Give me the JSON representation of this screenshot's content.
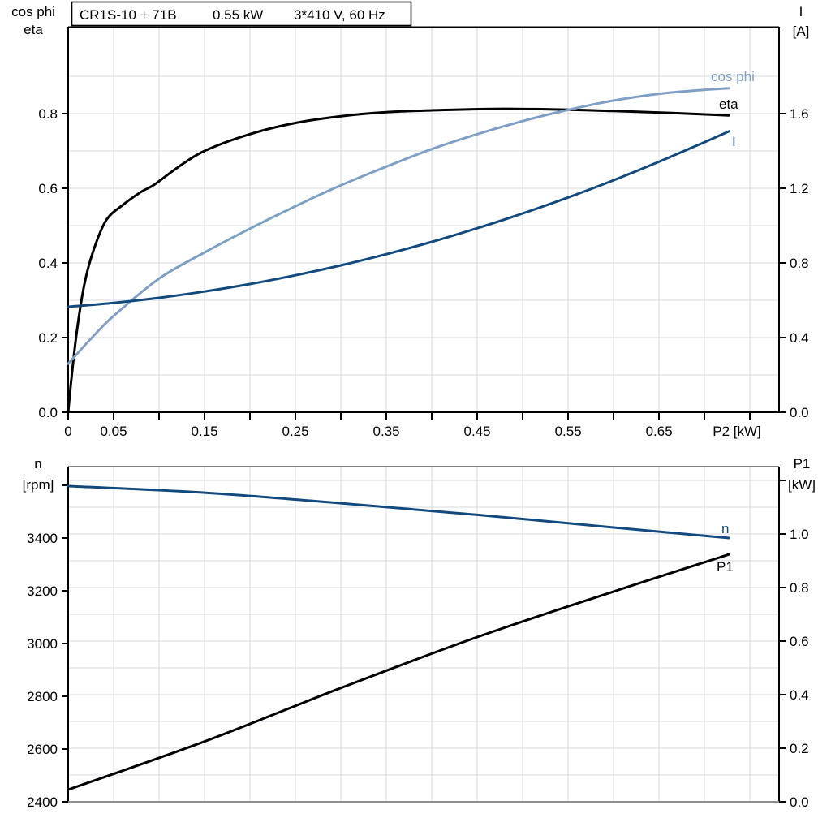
{
  "title": {
    "parts": [
      "CR1S-10 + 71B",
      "0.55 kW",
      "3*410 V, 60 Hz"
    ]
  },
  "colors": {
    "black": "#000000",
    "navy": "#124A7D",
    "light_blue": "#7FA0C4",
    "grid": "#D7D9DB",
    "frame_gray": "#8C8F91",
    "background": "#FFFFFF"
  },
  "chart_data": [
    {
      "type": "line",
      "panel": "top",
      "title": "CR1S-10 + 71B  0.55 kW  3*410 V, 60 Hz",
      "legend_position": "curve-end-labels",
      "grid": true,
      "x_axis": {
        "label": "P2 [kW]",
        "min": 0,
        "max": 0.782,
        "grid_step": 0.05,
        "tick_step": 0.05,
        "show_ticks": true,
        "labeled_ticks": [
          [
            0,
            "0"
          ],
          [
            0.05,
            "0.05"
          ],
          [
            0.15,
            "0.15"
          ],
          [
            0.25,
            "0.25"
          ],
          [
            0.35,
            "0.35"
          ],
          [
            0.45,
            "0.45"
          ],
          [
            0.55,
            "0.55"
          ],
          [
            0.65,
            "0.65"
          ]
        ]
      },
      "y_left": {
        "title_lines": [
          "cos phi",
          "eta"
        ],
        "min": 0,
        "max": 1.0326,
        "grid_step": 0.1,
        "grid_max": 0.9,
        "ticks": [
          [
            0,
            "0.0"
          ],
          [
            0.2,
            "0.2"
          ],
          [
            0.4,
            "0.4"
          ],
          [
            0.6,
            "0.6"
          ],
          [
            0.8,
            "0.8"
          ]
        ]
      },
      "y_right": {
        "title_lines": [
          "I",
          "[A]"
        ],
        "min": 0,
        "max": 2.0652,
        "ticks": [
          [
            0,
            "0.0"
          ],
          [
            0.4,
            "0.4"
          ],
          [
            0.8,
            "0.8"
          ],
          [
            1.2,
            "1.2"
          ],
          [
            1.6,
            "1.6"
          ]
        ]
      },
      "grid_axis": "left",
      "frame_bottom": "black",
      "series": [
        {
          "name": "eta",
          "label": "eta",
          "axis": "left",
          "color": "#000000",
          "points": [
            [
              0,
              0
            ],
            [
              0.004,
              0.1
            ],
            [
              0.01,
              0.225
            ],
            [
              0.018,
              0.345
            ],
            [
              0.028,
              0.435
            ],
            [
              0.042,
              0.515
            ],
            [
              0.06,
              0.555
            ],
            [
              0.08,
              0.59
            ],
            [
              0.095,
              0.61
            ],
            [
              0.12,
              0.655
            ],
            [
              0.15,
              0.7
            ],
            [
              0.2,
              0.745
            ],
            [
              0.25,
              0.775
            ],
            [
              0.3,
              0.793
            ],
            [
              0.35,
              0.804
            ],
            [
              0.42,
              0.81
            ],
            [
              0.47,
              0.8125
            ],
            [
              0.53,
              0.8115
            ],
            [
              0.6,
              0.807
            ],
            [
              0.67,
              0.801
            ],
            [
              0.727,
              0.795
            ]
          ]
        },
        {
          "name": "cos phi",
          "label": "cos phi",
          "axis": "left",
          "color": "#7FA0C4",
          "points": [
            [
              0,
              0.13
            ],
            [
              0.025,
              0.197
            ],
            [
              0.05,
              0.258
            ],
            [
              0.1,
              0.358
            ],
            [
              0.15,
              0.428
            ],
            [
              0.2,
              0.492
            ],
            [
              0.25,
              0.552
            ],
            [
              0.3,
              0.608
            ],
            [
              0.35,
              0.658
            ],
            [
              0.4,
              0.705
            ],
            [
              0.45,
              0.745
            ],
            [
              0.5,
              0.78
            ],
            [
              0.55,
              0.81
            ],
            [
              0.6,
              0.835
            ],
            [
              0.65,
              0.853
            ],
            [
              0.69,
              0.862
            ],
            [
              0.727,
              0.868
            ]
          ]
        },
        {
          "name": "I",
          "label": "I",
          "axis": "right",
          "color": "#124A7D",
          "points": [
            [
              0,
              0.565
            ],
            [
              0.05,
              0.586
            ],
            [
              0.1,
              0.613
            ],
            [
              0.15,
              0.647
            ],
            [
              0.2,
              0.687
            ],
            [
              0.25,
              0.734
            ],
            [
              0.3,
              0.787
            ],
            [
              0.35,
              0.847
            ],
            [
              0.4,
              0.913
            ],
            [
              0.45,
              0.986
            ],
            [
              0.5,
              1.065
            ],
            [
              0.55,
              1.151
            ],
            [
              0.6,
              1.243
            ],
            [
              0.65,
              1.342
            ],
            [
              0.7,
              1.447
            ],
            [
              0.727,
              1.505
            ]
          ]
        }
      ]
    },
    {
      "type": "line",
      "panel": "bottom",
      "legend_position": "curve-end-labels",
      "grid": true,
      "x_axis": {
        "label": "",
        "min": 0,
        "max": 0.782,
        "grid_step": 0.05,
        "show_ticks": false,
        "labeled_ticks": []
      },
      "y_left": {
        "title_lines": [
          "n",
          "[rpm]"
        ],
        "min": 2400,
        "max": 3670.8,
        "ticks": [
          [
            2400,
            "2400"
          ],
          [
            2600,
            "2600"
          ],
          [
            2800,
            "2800"
          ],
          [
            3000,
            "3000"
          ],
          [
            3200,
            "3200"
          ],
          [
            3400,
            "3400"
          ],
          [
            3600,
            ""
          ]
        ]
      },
      "y_right": {
        "title_lines": [
          "P1",
          "[kW]"
        ],
        "min": 0,
        "max": 1.2515,
        "grid_step": 0.1,
        "grid_max": 1.2,
        "ticks": [
          [
            0,
            "0.0"
          ],
          [
            0.2,
            "0.2"
          ],
          [
            0.4,
            "0.4"
          ],
          [
            0.6,
            "0.6"
          ],
          [
            0.8,
            "0.8"
          ],
          [
            1.0,
            "1.0"
          ],
          [
            1.2,
            ""
          ]
        ]
      },
      "grid_axis": "right",
      "frame_bottom": "gray",
      "series": [
        {
          "name": "n",
          "label": "n",
          "axis": "left",
          "color": "#124A7D",
          "points": [
            [
              0,
              3597
            ],
            [
              0.15,
              3572
            ],
            [
              0.3,
              3532
            ],
            [
              0.45,
              3488
            ],
            [
              0.6,
              3440
            ],
            [
              0.727,
              3400
            ]
          ]
        },
        {
          "name": "P1",
          "label": "P1",
          "axis": "right",
          "color": "#000000",
          "points": [
            [
              0,
              0.045
            ],
            [
              0.15,
              0.225
            ],
            [
              0.3,
              0.425
            ],
            [
              0.45,
              0.615
            ],
            [
              0.6,
              0.785
            ],
            [
              0.727,
              0.924
            ]
          ]
        }
      ]
    }
  ]
}
